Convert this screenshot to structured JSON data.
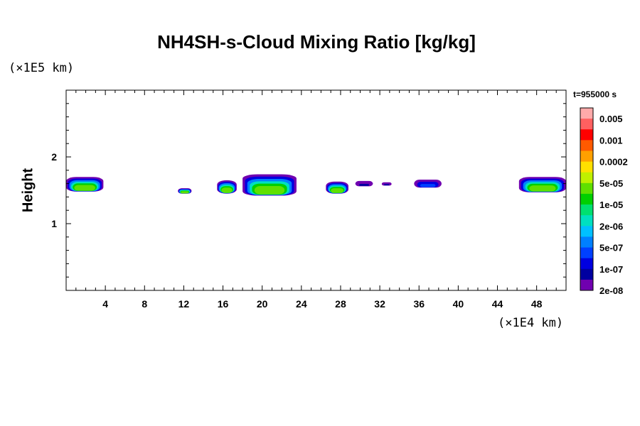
{
  "chart_data": {
    "type": "heatmap",
    "title": "NH4SH-s-Cloud Mixing Ratio [kg/kg]",
    "xlabel": "",
    "ylabel": "Height",
    "x_unit": "(×1E4 km)",
    "y_unit": "(×1E5 km)",
    "time_label": "t=955000 s",
    "xlim": [
      0,
      51
    ],
    "ylim": [
      0,
      3
    ],
    "x_ticks": [
      4,
      8,
      12,
      16,
      20,
      24,
      28,
      32,
      36,
      40,
      44,
      48
    ],
    "y_ticks": [
      1,
      2
    ],
    "colorbar": {
      "labels": [
        "0.005",
        "0.001",
        "0.0002",
        "5e-05",
        "1e-05",
        "2e-06",
        "5e-07",
        "1e-07",
        "2e-08"
      ],
      "colors": [
        "#ffaaaa",
        "#ff6060",
        "#ff0000",
        "#ff5a00",
        "#ffa000",
        "#ffe000",
        "#c0f000",
        "#60e000",
        "#00d000",
        "#00e070",
        "#00e0c0",
        "#00c0ff",
        "#0080ff",
        "#0040ff",
        "#0000e0",
        "#0000a0",
        "#7000b0"
      ]
    },
    "cloud_regions": [
      {
        "x_start": 0,
        "x_end": 3.8,
        "y_bottom": 1.48,
        "y_top": 1.7,
        "max_level": "5e-05"
      },
      {
        "x_start": 11.4,
        "x_end": 12.8,
        "y_bottom": 1.45,
        "y_top": 1.53,
        "max_level": "5e-05"
      },
      {
        "x_start": 15.4,
        "x_end": 17.4,
        "y_bottom": 1.45,
        "y_top": 1.65,
        "max_level": "5e-05"
      },
      {
        "x_start": 18,
        "x_end": 23.5,
        "y_bottom": 1.42,
        "y_top": 1.74,
        "max_level": "5e-05"
      },
      {
        "x_start": 26.5,
        "x_end": 28.8,
        "y_bottom": 1.45,
        "y_top": 1.63,
        "max_level": "5e-05"
      },
      {
        "x_start": 29.5,
        "x_end": 31.3,
        "y_bottom": 1.56,
        "y_top": 1.64,
        "max_level": "1e-07"
      },
      {
        "x_start": 32.2,
        "x_end": 33.2,
        "y_bottom": 1.57,
        "y_top": 1.62,
        "max_level": "1e-07"
      },
      {
        "x_start": 35.5,
        "x_end": 38.3,
        "y_bottom": 1.54,
        "y_top": 1.66,
        "max_level": "5e-07"
      },
      {
        "x_start": 46.2,
        "x_end": 51,
        "y_bottom": 1.47,
        "y_top": 1.7,
        "max_level": "5e-05"
      }
    ]
  }
}
